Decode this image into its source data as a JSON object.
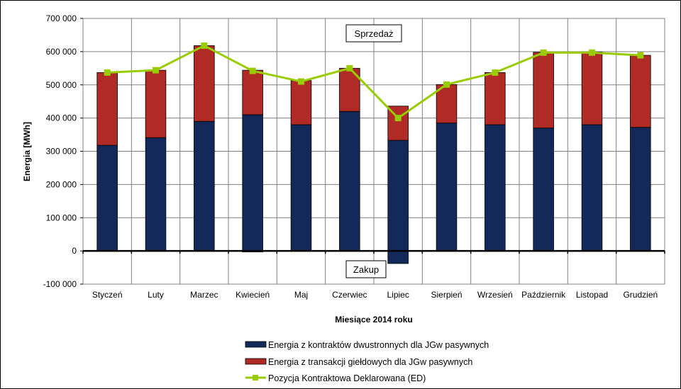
{
  "chart_data": {
    "type": "bar",
    "stacked": true,
    "title": "",
    "xlabel": "Miesiące 2014 roku",
    "ylabel": "Energia [MWh]",
    "ylim": [
      -100000,
      700000
    ],
    "yticks": [
      -100000,
      0,
      100000,
      200000,
      300000,
      400000,
      500000,
      600000,
      700000
    ],
    "ytick_labels": [
      "-100 000",
      "0",
      "100 000",
      "200 000",
      "300 000",
      "400 000",
      "500 000",
      "600 000",
      "700 000"
    ],
    "grid": true,
    "legend_position": "bottom",
    "categories": [
      "Styczeń",
      "Luty",
      "Marzec",
      "Kwiecień",
      "Maj",
      "Czerwiec",
      "Lipiec",
      "Sierpień",
      "Wrzesień",
      "Październik",
      "Listopad",
      "Grudzień"
    ],
    "series": [
      {
        "name": "Energia z kontraktów dwustronnych dla JGw pasywnych",
        "type": "bar",
        "color": "#12295a",
        "values": [
          318000,
          341000,
          390000,
          410000,
          380000,
          420000,
          333000,
          385000,
          380000,
          370000,
          380000,
          372000
        ],
        "negative_values": [
          0,
          0,
          0,
          -3000,
          0,
          0,
          -38000,
          0,
          0,
          0,
          0,
          0
        ]
      },
      {
        "name": "Energia z transakcji giełdowych dla JGw pasywnych",
        "type": "bar",
        "color": "#b02a26",
        "values": [
          219000,
          203000,
          228000,
          134000,
          133000,
          130000,
          103000,
          116000,
          157000,
          228000,
          219000,
          217000
        ]
      },
      {
        "name": "Pozycja Kontraktowa Deklarowana (ED)",
        "type": "line",
        "color": "#99cc00",
        "values": [
          537000,
          544000,
          618000,
          542000,
          510000,
          550000,
          400000,
          501000,
          537000,
          597000,
          597000,
          589000
        ]
      }
    ],
    "annotations": [
      "Sprzedaż",
      "Zakup"
    ]
  }
}
